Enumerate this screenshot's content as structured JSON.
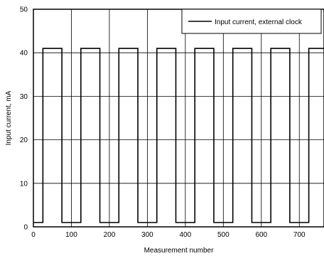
{
  "chart_data": {
    "type": "line",
    "xlabel": "Measurement number",
    "ylabel": "Input current, mA",
    "xlim": [
      0,
      765
    ],
    "ylim": [
      0,
      50
    ],
    "x_ticks": [
      0,
      100,
      200,
      300,
      400,
      500,
      600,
      700
    ],
    "y_ticks": [
      0,
      10,
      20,
      30,
      40,
      50
    ],
    "grid": true,
    "legend_position": "top-right",
    "line_color": "#000000",
    "series": [
      {
        "name": "Input current, external clock",
        "x": [
          0,
          25,
          25,
          75,
          75,
          125,
          125,
          175,
          175,
          225,
          225,
          275,
          275,
          325,
          325,
          375,
          375,
          425,
          425,
          475,
          475,
          525,
          525,
          575,
          575,
          625,
          625,
          675,
          675,
          725,
          725,
          765
        ],
        "y": [
          1,
          1,
          41,
          41,
          1,
          1,
          41,
          41,
          1,
          1,
          41,
          41,
          1,
          1,
          41,
          41,
          1,
          1,
          41,
          41,
          1,
          1,
          41,
          41,
          1,
          1,
          41,
          41,
          1,
          1,
          41,
          41
        ]
      }
    ]
  }
}
